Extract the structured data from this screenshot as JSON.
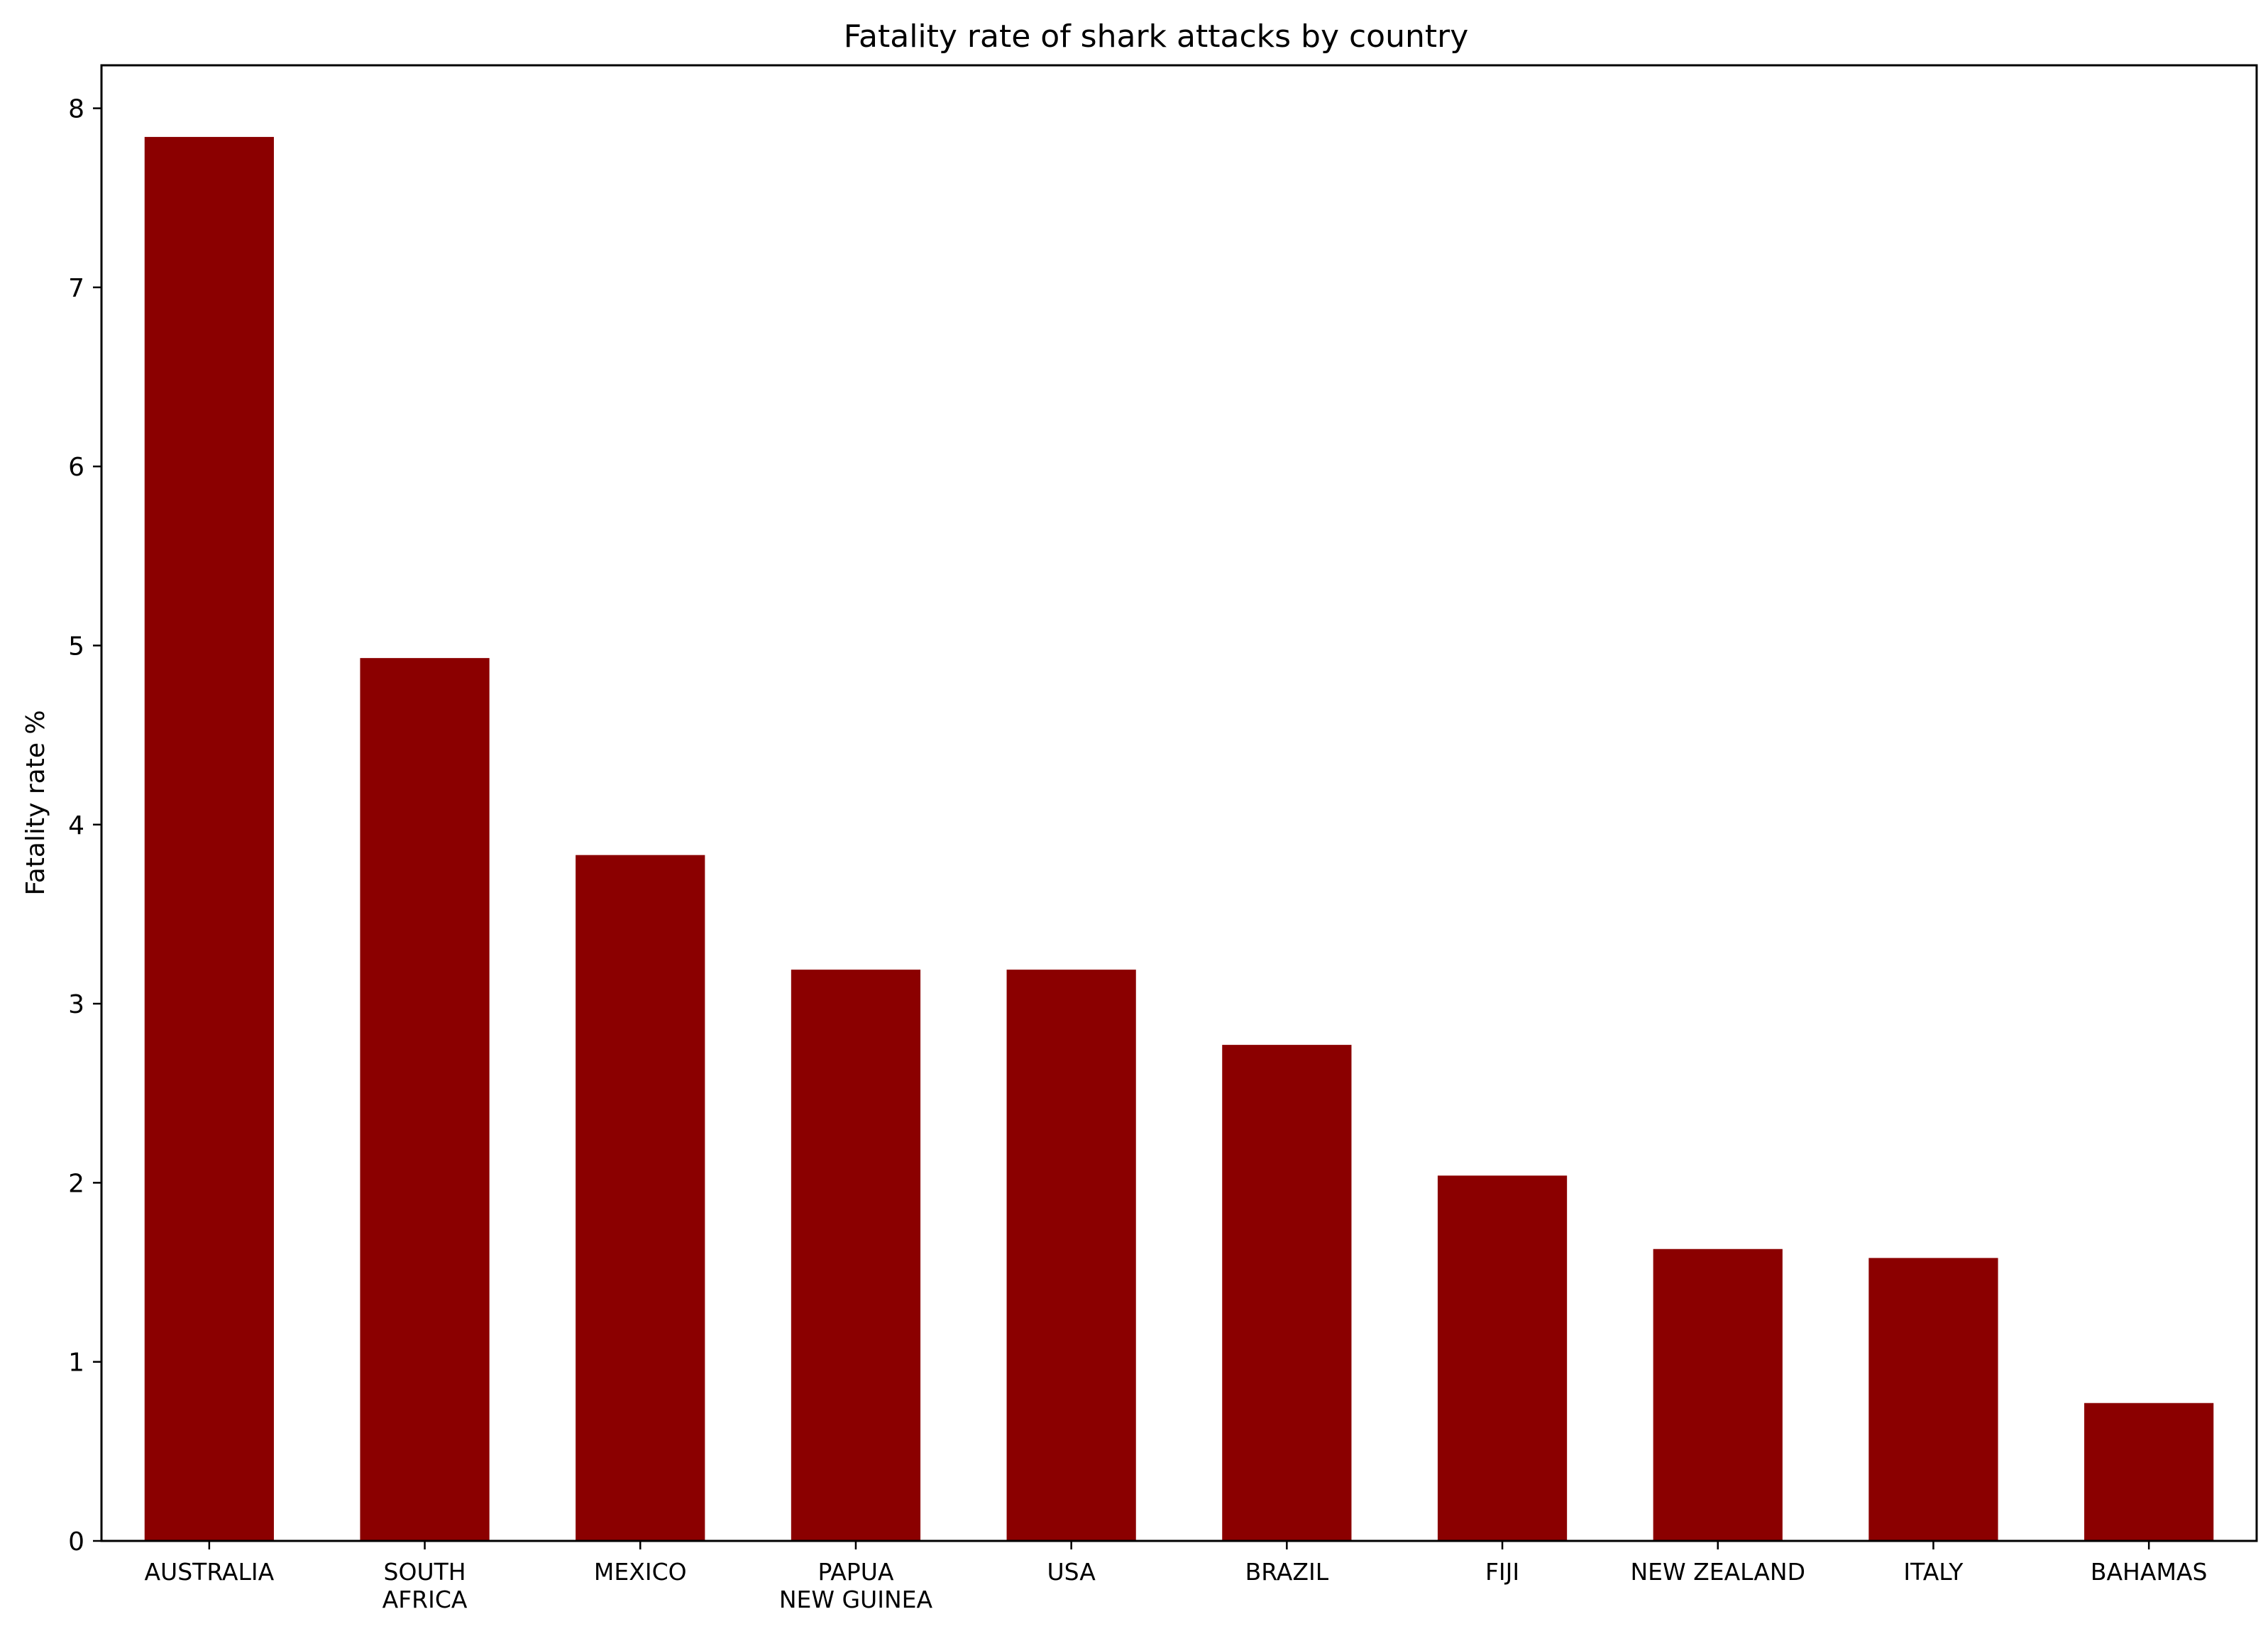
{
  "chart_data": {
    "type": "bar",
    "title": "Fatality rate of shark attacks by country",
    "xlabel": "",
    "ylabel": "Fatality rate %",
    "categories": [
      [
        "AUSTRALIA"
      ],
      [
        "SOUTH",
        "AFRICA"
      ],
      [
        "MEXICO"
      ],
      [
        "PAPUA",
        "NEW GUINEA"
      ],
      [
        "USA"
      ],
      [
        "BRAZIL"
      ],
      [
        "FIJI"
      ],
      [
        "NEW ZEALAND"
      ],
      [
        "ITALY"
      ],
      [
        "BAHAMAS"
      ]
    ],
    "values": [
      7.84,
      4.93,
      3.83,
      3.19,
      3.19,
      2.77,
      2.04,
      1.63,
      1.58,
      0.77
    ],
    "ylim": [
      0,
      8.24
    ],
    "yticks": [
      0,
      1,
      2,
      3,
      4,
      5,
      6,
      7,
      8
    ],
    "grid": false,
    "legend": "none",
    "colors": {
      "bar": "#8b0000",
      "axis": "#000000",
      "background": "#ffffff"
    }
  }
}
